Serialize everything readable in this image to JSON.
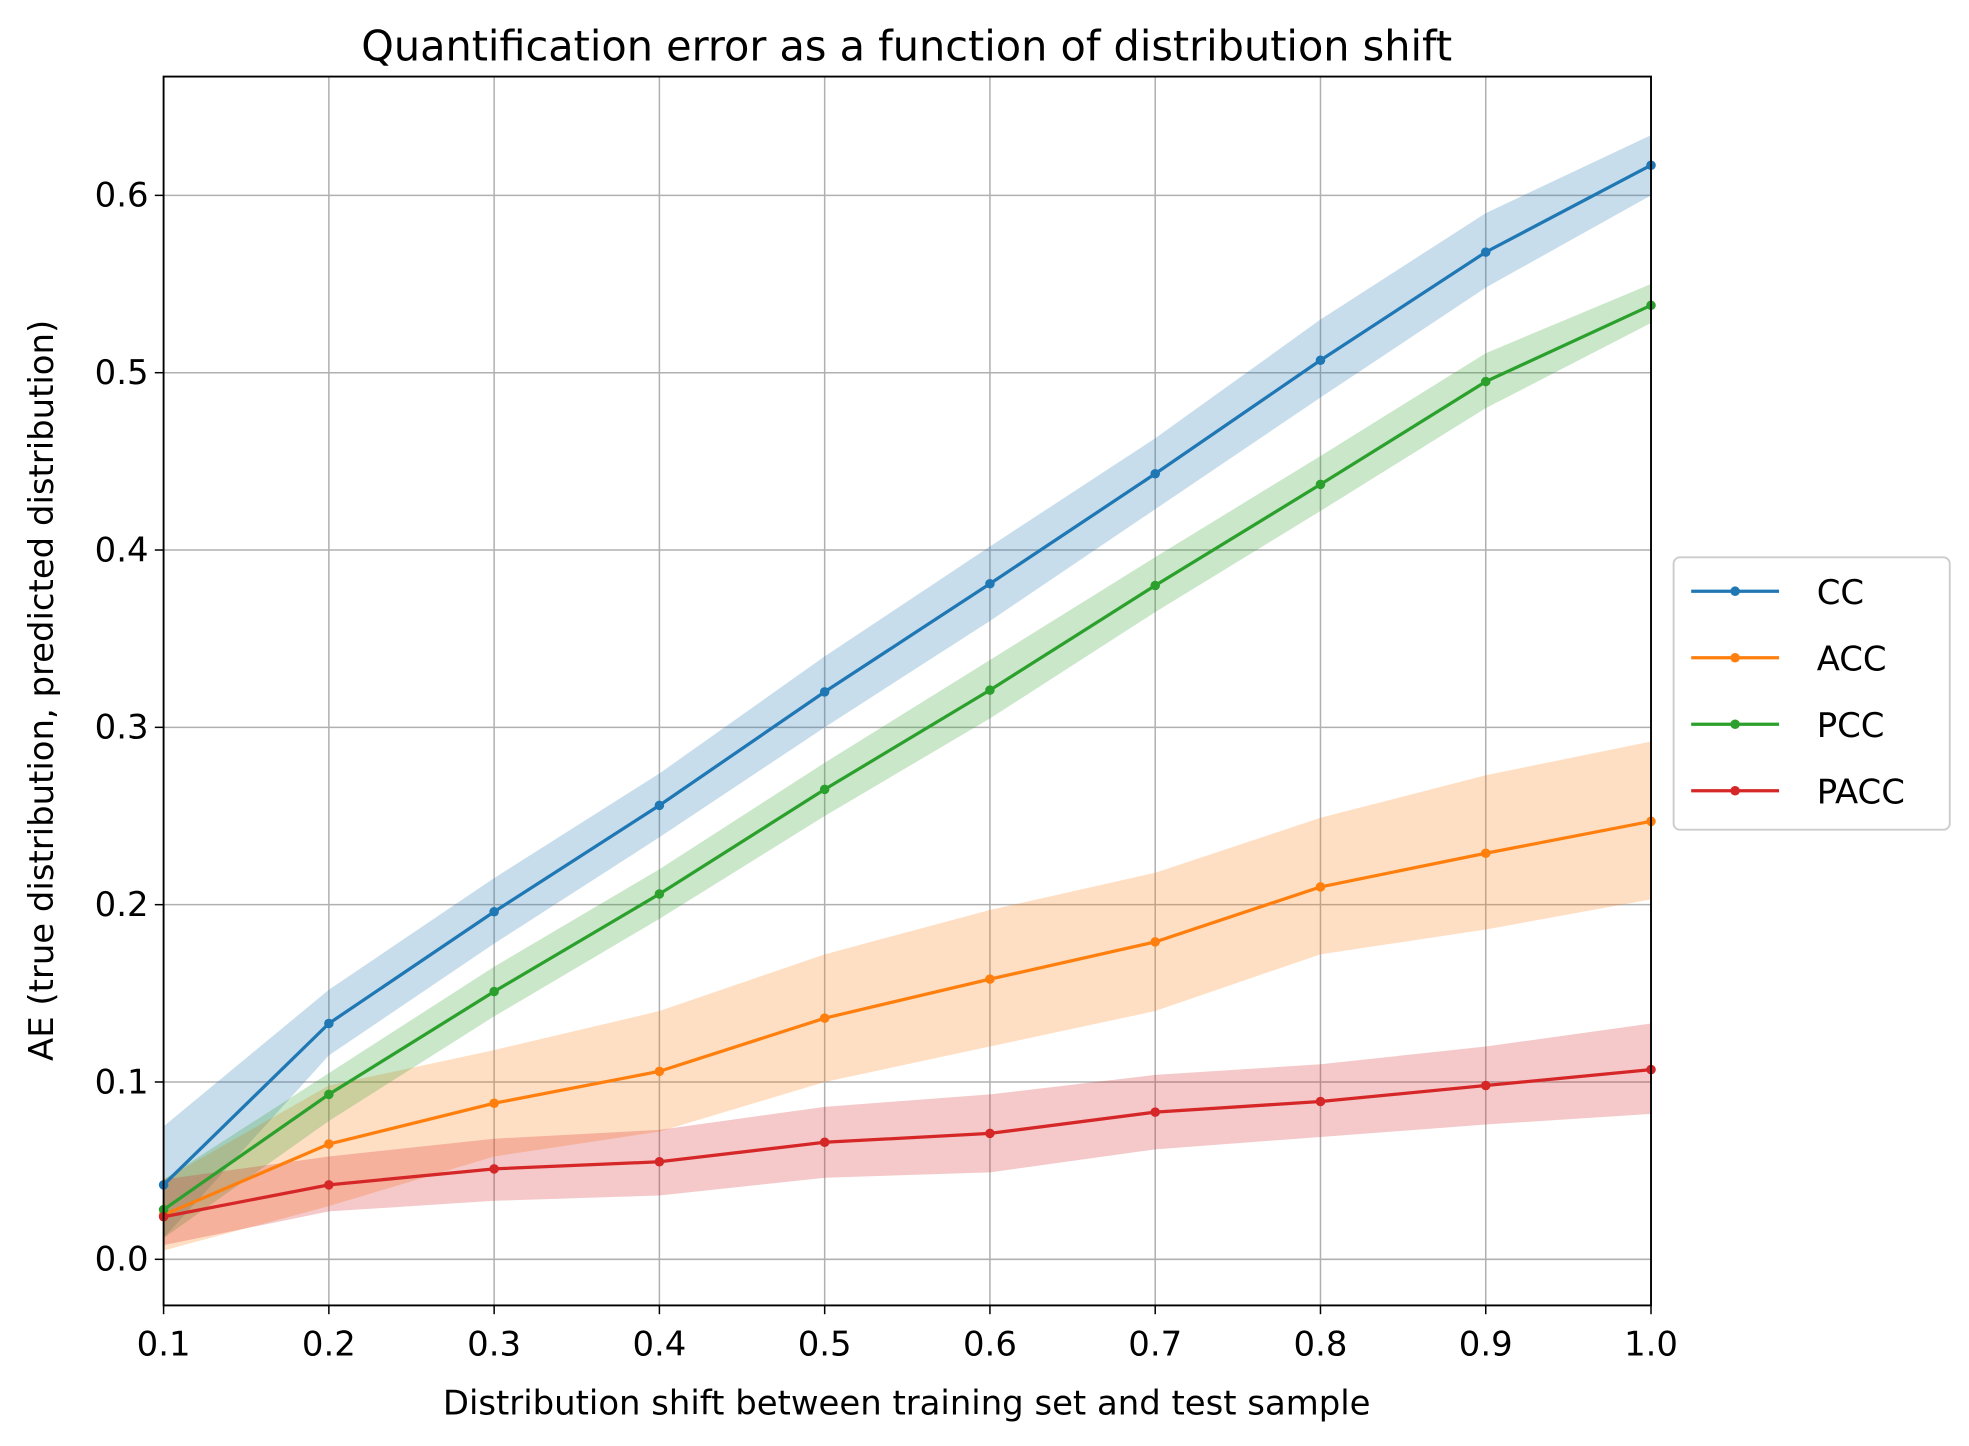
{
  "chart_data": {
    "type": "line",
    "title": "Quantification error as a function of distribution shift",
    "xlabel": "Distribution shift between training set and test sample",
    "ylabel": "AE (true distribution, predicted distribution)",
    "xlim": [
      0.1,
      1.0
    ],
    "ylim": [
      -0.026,
      0.667
    ],
    "grid": true,
    "legend_placement": "center-right outside",
    "x": [
      0.1,
      0.2,
      0.3,
      0.4,
      0.5,
      0.6,
      0.7,
      0.8,
      0.9,
      1.0
    ],
    "xticks": [
      "0.1",
      "0.2",
      "0.3",
      "0.4",
      "0.5",
      "0.6",
      "0.7",
      "0.8",
      "0.9",
      "1.0"
    ],
    "yticks": [
      "0.0",
      "0.1",
      "0.2",
      "0.3",
      "0.4",
      "0.5",
      "0.6"
    ],
    "ytick_values": [
      0.0,
      0.1,
      0.2,
      0.3,
      0.4,
      0.5,
      0.6
    ],
    "series": [
      {
        "name": "CC",
        "color": "#1f77b4",
        "values": [
          0.042,
          0.133,
          0.196,
          0.256,
          0.32,
          0.381,
          0.443,
          0.507,
          0.568,
          0.617
        ],
        "lower": [
          0.012,
          0.115,
          0.178,
          0.238,
          0.3,
          0.36,
          0.423,
          0.486,
          0.548,
          0.6
        ],
        "upper": [
          0.075,
          0.152,
          0.215,
          0.274,
          0.34,
          0.402,
          0.463,
          0.53,
          0.59,
          0.634
        ]
      },
      {
        "name": "ACC",
        "color": "#ff7f0e",
        "values": [
          0.025,
          0.065,
          0.088,
          0.106,
          0.136,
          0.158,
          0.179,
          0.21,
          0.229,
          0.247
        ],
        "lower": [
          0.005,
          0.03,
          0.058,
          0.072,
          0.1,
          0.12,
          0.14,
          0.172,
          0.186,
          0.203
        ],
        "upper": [
          0.045,
          0.098,
          0.118,
          0.14,
          0.172,
          0.197,
          0.218,
          0.249,
          0.273,
          0.292
        ]
      },
      {
        "name": "PCC",
        "color": "#2ca02c",
        "values": [
          0.028,
          0.093,
          0.151,
          0.206,
          0.265,
          0.321,
          0.38,
          0.437,
          0.495,
          0.538
        ],
        "lower": [
          0.012,
          0.078,
          0.137,
          0.192,
          0.25,
          0.305,
          0.365,
          0.422,
          0.48,
          0.528
        ],
        "upper": [
          0.045,
          0.105,
          0.165,
          0.22,
          0.28,
          0.338,
          0.396,
          0.453,
          0.511,
          0.55
        ]
      },
      {
        "name": "PACC",
        "color": "#d62728",
        "values": [
          0.024,
          0.042,
          0.051,
          0.055,
          0.066,
          0.071,
          0.083,
          0.089,
          0.098,
          0.107
        ],
        "lower": [
          0.008,
          0.027,
          0.033,
          0.036,
          0.046,
          0.049,
          0.062,
          0.069,
          0.076,
          0.082
        ],
        "upper": [
          0.045,
          0.058,
          0.068,
          0.073,
          0.086,
          0.093,
          0.104,
          0.11,
          0.12,
          0.133
        ]
      }
    ]
  }
}
